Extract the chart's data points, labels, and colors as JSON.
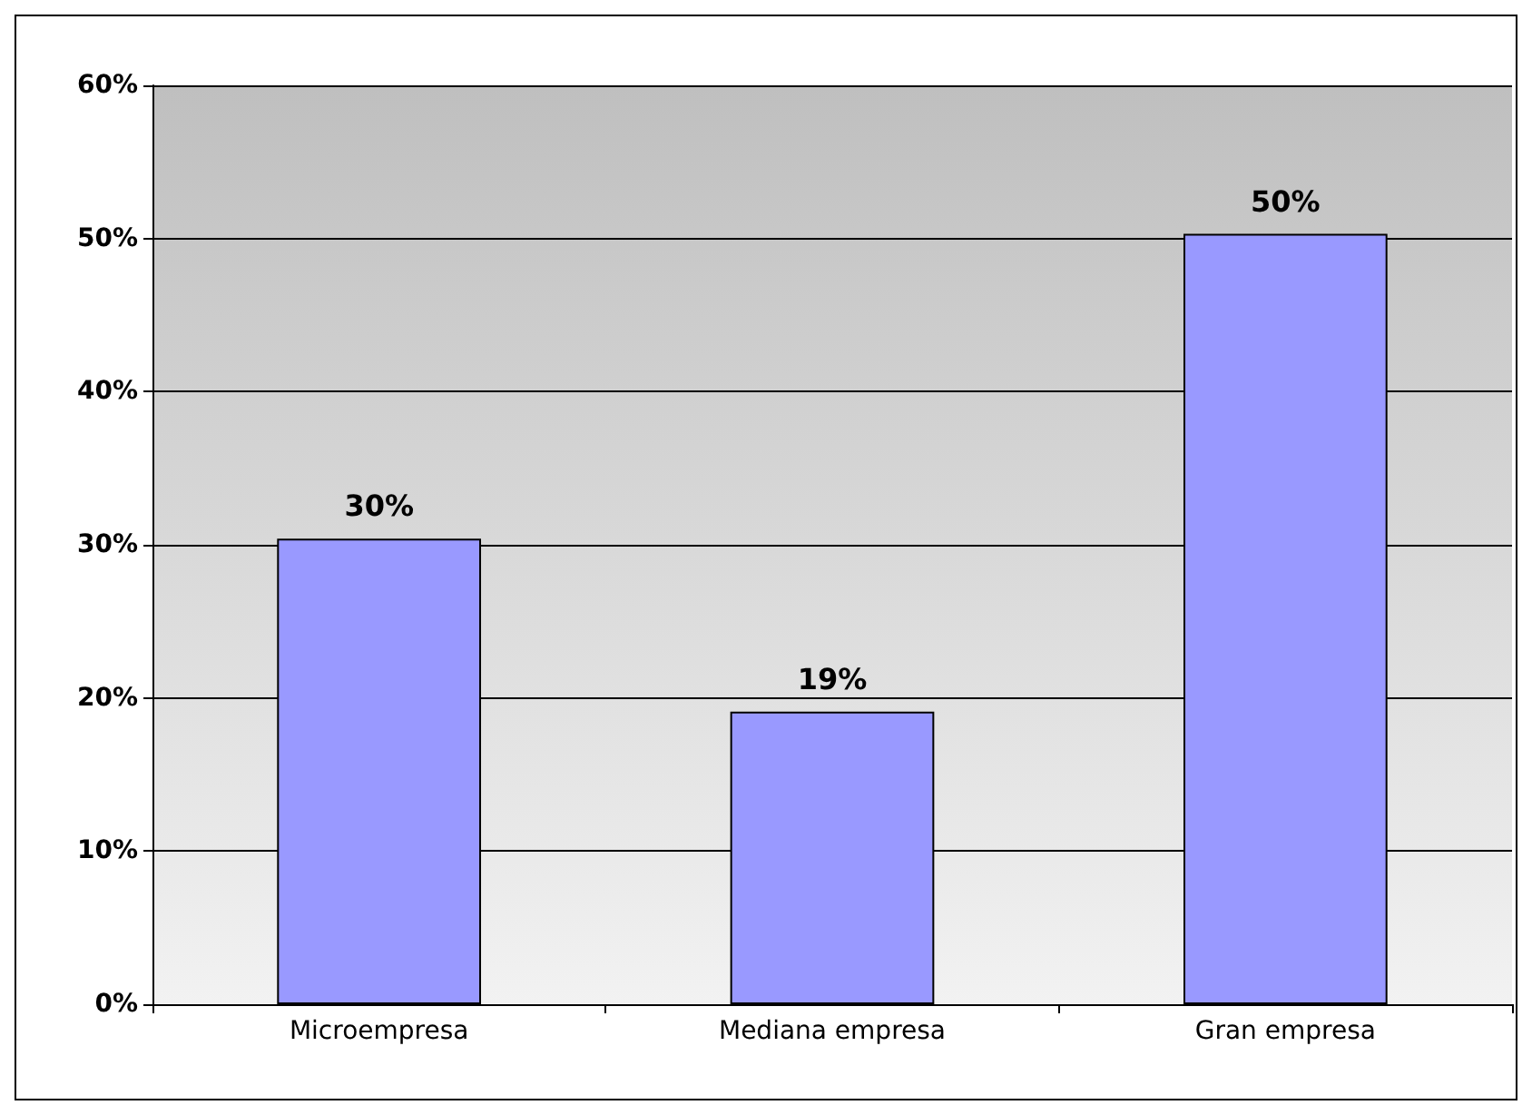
{
  "chart_data": {
    "type": "bar",
    "categories": [
      "Microempresa",
      "Mediana empresa",
      "Gran empresa"
    ],
    "values": [
      30.4,
      19.1,
      50.3
    ],
    "value_labels": [
      "30%",
      "19%",
      "50%"
    ],
    "color": "#9999ff",
    "ylim": [
      0,
      60
    ],
    "yticks": [
      {
        "value": 0,
        "label": "0%"
      },
      {
        "value": 10,
        "label": "10%"
      },
      {
        "value": 20,
        "label": "20%"
      },
      {
        "value": 30,
        "label": "30%"
      },
      {
        "value": 40,
        "label": "40%"
      },
      {
        "value": 50,
        "label": "50%"
      },
      {
        "value": 60,
        "label": "60%"
      }
    ],
    "grid": "y"
  }
}
